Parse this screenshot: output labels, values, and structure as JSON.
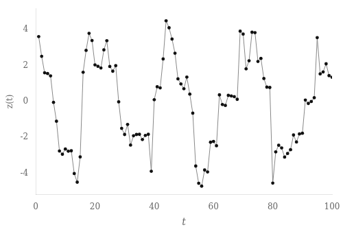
{
  "chart_data": {
    "type": "line",
    "xlabel": "t",
    "ylabel": "z(t)",
    "x": [
      1,
      2,
      3,
      4,
      5,
      6,
      7,
      8,
      9,
      10,
      11,
      12,
      13,
      14,
      15,
      16,
      17,
      18,
      19,
      20,
      21,
      22,
      23,
      24,
      25,
      26,
      27,
      28,
      29,
      30,
      31,
      32,
      33,
      34,
      35,
      36,
      37,
      38,
      39,
      40,
      41,
      42,
      43,
      44,
      45,
      46,
      47,
      48,
      49,
      50,
      51,
      52,
      53,
      54,
      55,
      56,
      57,
      58,
      59,
      60,
      61,
      62,
      63,
      64,
      65,
      66,
      67,
      68,
      69,
      70,
      71,
      72,
      73,
      74,
      75,
      76,
      77,
      78,
      79,
      80,
      81,
      82,
      83,
      84,
      85,
      86,
      87,
      88,
      89,
      90,
      91,
      92,
      93,
      94,
      95,
      96,
      97,
      98,
      99,
      100
    ],
    "series": [
      {
        "type": "line",
        "color": "#888888",
        "values": [
          3.62,
          2.52,
          1.6,
          1.56,
          1.43,
          -0.05,
          -1.1,
          -2.76,
          -2.94,
          -2.65,
          -2.77,
          -2.75,
          -4.02,
          -4.5,
          -3.09,
          1.63,
          2.85,
          3.8,
          3.4,
          2.04,
          1.96,
          1.87,
          2.88,
          3.39,
          1.95,
          1.69,
          2.0,
          -0.02,
          -1.5,
          -1.84,
          -1.28,
          -2.43,
          -1.91,
          -1.84,
          -1.83,
          -2.12,
          -1.89,
          -1.83,
          -3.89,
          0.1,
          0.82,
          0.76,
          2.37,
          4.5,
          4.11,
          3.48,
          2.69,
          1.26,
          0.98,
          0.71,
          1.36,
          0.41,
          -0.65,
          -3.6,
          -4.56,
          -4.72,
          -3.82,
          -3.93,
          -2.27,
          -2.23,
          -2.47,
          0.37,
          -0.17,
          -0.22,
          0.34,
          0.31,
          0.27,
          0.12,
          3.92,
          3.76,
          1.82,
          2.27,
          3.86,
          3.84,
          2.23,
          2.4,
          1.28,
          0.8,
          0.78,
          -4.55,
          -2.81,
          -2.44,
          -2.59,
          -3.1,
          -2.9,
          -2.69,
          -1.87,
          -2.26,
          -1.81,
          -1.77,
          0.08,
          -0.11,
          0.0,
          0.21,
          3.56,
          1.54,
          1.65,
          2.1,
          1.44,
          1.35
        ]
      },
      {
        "type": "scatter",
        "color": "#111111",
        "marker": "circle",
        "values": [
          3.62,
          2.52,
          1.6,
          1.56,
          1.43,
          -0.05,
          -1.1,
          -2.76,
          -2.94,
          -2.65,
          -2.77,
          -2.75,
          -4.02,
          -4.5,
          -3.09,
          1.63,
          2.85,
          3.8,
          3.4,
          2.04,
          1.96,
          1.87,
          2.88,
          3.39,
          1.95,
          1.69,
          2.0,
          -0.02,
          -1.5,
          -1.84,
          -1.28,
          -2.43,
          -1.91,
          -1.84,
          -1.83,
          -2.12,
          -1.89,
          -1.83,
          -3.89,
          0.1,
          0.82,
          0.76,
          2.37,
          4.5,
          4.11,
          3.48,
          2.69,
          1.26,
          0.98,
          0.71,
          1.36,
          0.41,
          -0.65,
          -3.6,
          -4.56,
          -4.72,
          -3.82,
          -3.93,
          -2.27,
          -2.23,
          -2.47,
          0.37,
          -0.17,
          -0.22,
          0.34,
          0.31,
          0.27,
          0.12,
          3.92,
          3.76,
          1.82,
          2.27,
          3.86,
          3.84,
          2.23,
          2.4,
          1.28,
          0.8,
          0.78,
          -4.55,
          -2.81,
          -2.44,
          -2.59,
          -3.1,
          -2.9,
          -2.69,
          -1.87,
          -2.26,
          -1.81,
          -1.77,
          0.08,
          -0.11,
          0.0,
          0.21,
          3.56,
          1.54,
          1.65,
          2.1,
          1.44,
          1.35
        ]
      }
    ],
    "xlim": [
      0,
      100
    ],
    "ylim": [
      -5.2,
      5.2
    ],
    "xticks": [
      0,
      20,
      40,
      60,
      80,
      100
    ],
    "yticks": [
      -4,
      -2,
      0,
      2,
      4
    ],
    "grid": false
  }
}
